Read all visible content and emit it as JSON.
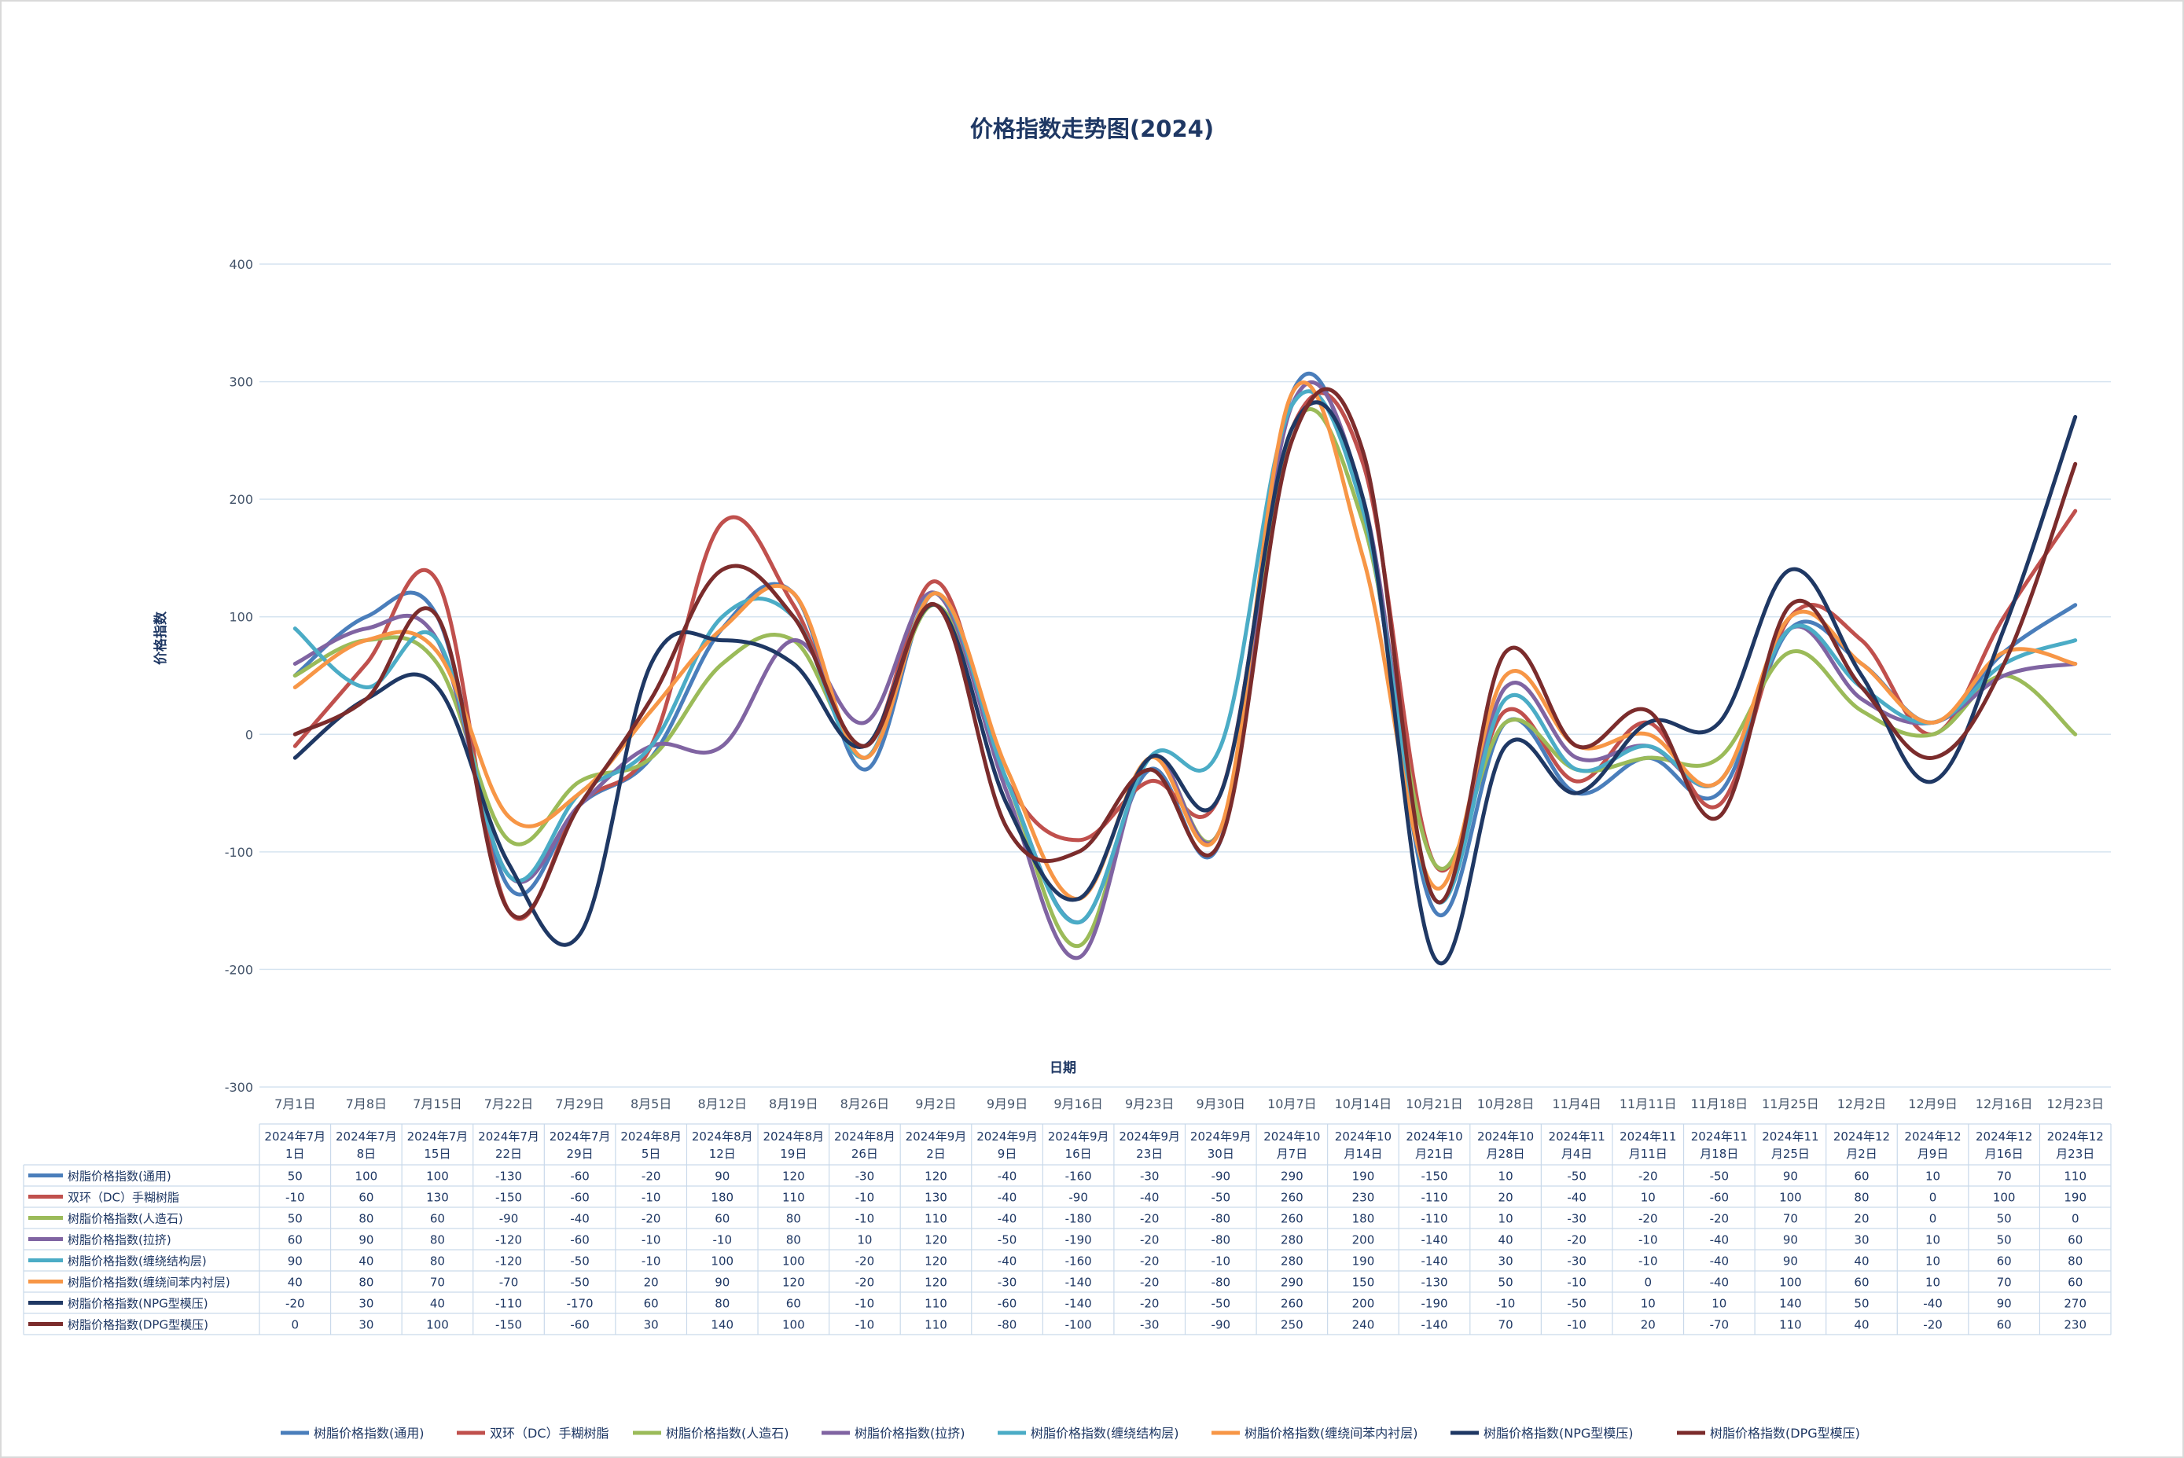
{
  "chart_data": {
    "type": "line",
    "title": "价格指数走势图(2024)",
    "xlabel": "日期",
    "ylabel": "价格指数",
    "ylim": [
      -300,
      400
    ],
    "yticks": [
      400,
      300,
      200,
      100,
      0,
      -100,
      -200,
      -300
    ],
    "grid": true,
    "legend_position": "bottom",
    "categories": [
      "7月1日",
      "7月8日",
      "7月15日",
      "7月22日",
      "7月29日",
      "8月5日",
      "8月12日",
      "8月19日",
      "8月26日",
      "9月2日",
      "9月9日",
      "9月16日",
      "9月23日",
      "9月30日",
      "10月7日",
      "10月14日",
      "10月21日",
      "10月28日",
      "11月4日",
      "11月11日",
      "11月18日",
      "11月25日",
      "12月2日",
      "12月9日",
      "12月16日",
      "12月23日"
    ],
    "table_headers": [
      [
        "2024年7月",
        "1日"
      ],
      [
        "2024年7月",
        "8日"
      ],
      [
        "2024年7月",
        "15日"
      ],
      [
        "2024年7月",
        "22日"
      ],
      [
        "2024年7月",
        "29日"
      ],
      [
        "2024年8月",
        "5日"
      ],
      [
        "2024年8月",
        "12日"
      ],
      [
        "2024年8月",
        "19日"
      ],
      [
        "2024年8月",
        "26日"
      ],
      [
        "2024年9月",
        "2日"
      ],
      [
        "2024年9月",
        "9日"
      ],
      [
        "2024年9月",
        "16日"
      ],
      [
        "2024年9月",
        "23日"
      ],
      [
        "2024年9月",
        "30日"
      ],
      [
        "2024年10",
        "月7日"
      ],
      [
        "2024年10",
        "月14日"
      ],
      [
        "2024年10",
        "月21日"
      ],
      [
        "2024年10",
        "月28日"
      ],
      [
        "2024年11",
        "月4日"
      ],
      [
        "2024年11",
        "月11日"
      ],
      [
        "2024年11",
        "月18日"
      ],
      [
        "2024年11",
        "月25日"
      ],
      [
        "2024年12",
        "月2日"
      ],
      [
        "2024年12",
        "月9日"
      ],
      [
        "2024年12",
        "月16日"
      ],
      [
        "2024年12",
        "月23日"
      ]
    ],
    "series": [
      {
        "name": "树脂价格指数(通用)",
        "color": "#4a7ebb",
        "values": [
          50,
          100,
          100,
          -130,
          -60,
          -20,
          90,
          120,
          -30,
          120,
          -40,
          -160,
          -30,
          -90,
          290,
          190,
          -150,
          10,
          -50,
          -20,
          -50,
          90,
          60,
          10,
          70,
          110
        ]
      },
      {
        "name": "双环（DC）手糊树脂",
        "color": "#c0504d",
        "values": [
          -10,
          60,
          130,
          -150,
          -60,
          -10,
          180,
          110,
          -10,
          130,
          -40,
          -90,
          -40,
          -50,
          260,
          230,
          -110,
          20,
          -40,
          10,
          -60,
          100,
          80,
          0,
          100,
          190
        ]
      },
      {
        "name": "树脂价格指数(人造石)",
        "color": "#9bbb59",
        "values": [
          50,
          80,
          60,
          -90,
          -40,
          -20,
          60,
          80,
          -10,
          110,
          -40,
          -180,
          -20,
          -80,
          260,
          180,
          -110,
          10,
          -30,
          -20,
          -20,
          70,
          20,
          0,
          50,
          0
        ]
      },
      {
        "name": "树脂价格指数(拉挤)",
        "color": "#8064a2",
        "values": [
          60,
          90,
          80,
          -120,
          -60,
          -10,
          -10,
          80,
          10,
          120,
          -50,
          -190,
          -20,
          -80,
          280,
          200,
          -140,
          40,
          -20,
          -10,
          -40,
          90,
          30,
          10,
          50,
          60
        ]
      },
      {
        "name": "树脂价格指数(缠绕结构层)",
        "color": "#4bacc6",
        "values": [
          90,
          40,
          80,
          -120,
          -50,
          -10,
          100,
          100,
          -20,
          120,
          -40,
          -160,
          -20,
          -10,
          280,
          190,
          -140,
          30,
          -30,
          -10,
          -40,
          90,
          40,
          10,
          60,
          80
        ]
      },
      {
        "name": "树脂价格指数(缠绕间苯内衬层)",
        "color": "#f79646",
        "values": [
          40,
          80,
          70,
          -70,
          -50,
          20,
          90,
          120,
          -20,
          120,
          -30,
          -140,
          -20,
          -80,
          290,
          150,
          -130,
          50,
          -10,
          0,
          -40,
          100,
          60,
          10,
          70,
          60
        ]
      },
      {
        "name": "树脂价格指数(NPG型模压)",
        "color": "#1f3864",
        "values": [
          -20,
          30,
          40,
          -110,
          -170,
          60,
          80,
          60,
          -10,
          110,
          -60,
          -140,
          -20,
          -50,
          260,
          200,
          -190,
          -10,
          -50,
          10,
          10,
          140,
          50,
          -40,
          90,
          270
        ]
      },
      {
        "name": "树脂价格指数(DPG型模压)",
        "color": "#7b2c2c",
        "values": [
          0,
          30,
          100,
          -150,
          -60,
          30,
          140,
          100,
          -10,
          110,
          -80,
          -100,
          -30,
          -90,
          250,
          240,
          -140,
          70,
          -10,
          20,
          -70,
          110,
          40,
          -20,
          60,
          230
        ]
      }
    ]
  }
}
